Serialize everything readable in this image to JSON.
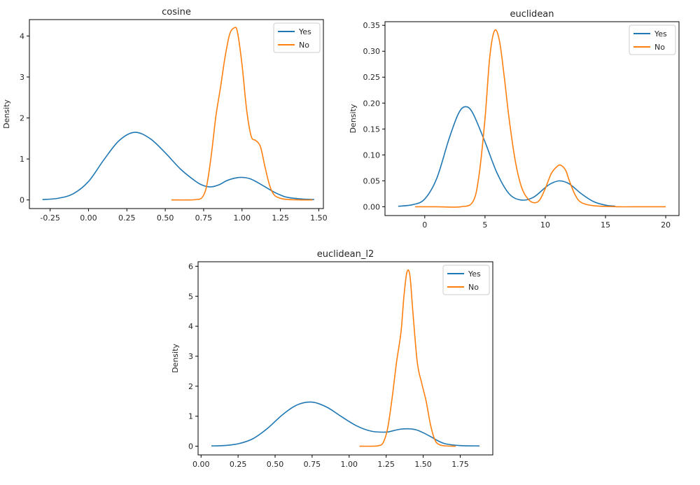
{
  "chart_data": [
    {
      "type": "line",
      "title": "cosine",
      "xlabel": "",
      "ylabel": "Density",
      "xlim": [
        -0.385,
        1.53
      ],
      "ylim": [
        -0.21,
        4.4
      ],
      "xticks": [
        -0.25,
        0.0,
        0.25,
        0.5,
        0.75,
        1.0,
        1.25,
        1.5
      ],
      "xtick_labels": [
        "-0.25",
        "0.00",
        "0.25",
        "0.50",
        "0.75",
        "1.00",
        "1.25",
        "1.50"
      ],
      "yticks": [
        0,
        1,
        2,
        3,
        4
      ],
      "ytick_labels": [
        "0",
        "1",
        "2",
        "3",
        "4"
      ],
      "grid": false,
      "legend_position": "top-right",
      "series": [
        {
          "name": "Yes",
          "color": "#1f77b4",
          "x": [
            -0.3,
            -0.2,
            -0.1,
            0.0,
            0.1,
            0.2,
            0.3,
            0.4,
            0.5,
            0.6,
            0.7,
            0.75,
            0.8,
            0.85,
            0.9,
            0.95,
            1.0,
            1.05,
            1.1,
            1.15,
            1.2,
            1.25,
            1.3,
            1.4,
            1.47
          ],
          "y": [
            0.01,
            0.04,
            0.15,
            0.45,
            0.98,
            1.45,
            1.65,
            1.5,
            1.15,
            0.75,
            0.45,
            0.35,
            0.32,
            0.37,
            0.47,
            0.53,
            0.55,
            0.52,
            0.43,
            0.32,
            0.21,
            0.12,
            0.06,
            0.02,
            0.01
          ]
        },
        {
          "name": "No",
          "color": "#ff7f0e",
          "x": [
            0.54,
            0.65,
            0.7,
            0.74,
            0.77,
            0.8,
            0.83,
            0.86,
            0.89,
            0.92,
            0.95,
            0.97,
            1.0,
            1.03,
            1.06,
            1.09,
            1.12,
            1.15,
            1.18,
            1.21,
            1.25,
            1.3,
            1.4,
            1.46
          ],
          "y": [
            0.0,
            0.0,
            0.01,
            0.06,
            0.35,
            1.1,
            2.05,
            2.75,
            3.5,
            4.05,
            4.2,
            4.1,
            3.3,
            2.2,
            1.55,
            1.45,
            1.3,
            0.8,
            0.35,
            0.12,
            0.04,
            0.01,
            0.0,
            0.0
          ]
        }
      ]
    },
    {
      "type": "line",
      "title": "euclidean",
      "xlabel": "",
      "ylabel": "Density",
      "xlim": [
        -3.3,
        21.1
      ],
      "ylim": [
        -0.017,
        0.357
      ],
      "xticks": [
        0,
        5,
        10,
        15,
        20
      ],
      "xtick_labels": [
        "0",
        "5",
        "10",
        "15",
        "20"
      ],
      "yticks": [
        0.0,
        0.05,
        0.1,
        0.15,
        0.2,
        0.25,
        0.3,
        0.35
      ],
      "ytick_labels": [
        "0.00",
        "0.05",
        "0.10",
        "0.15",
        "0.20",
        "0.25",
        "0.30",
        "0.35"
      ],
      "grid": false,
      "legend_position": "top-right",
      "series": [
        {
          "name": "Yes",
          "color": "#1f77b4",
          "x": [
            -2.2,
            -1.0,
            0.0,
            1.0,
            2.0,
            2.8,
            3.4,
            4.0,
            5.0,
            6.0,
            7.0,
            8.0,
            9.0,
            10.0,
            10.5,
            11.2,
            12.0,
            13.0,
            14.0,
            15.0,
            15.8
          ],
          "y": [
            0.001,
            0.004,
            0.015,
            0.055,
            0.13,
            0.18,
            0.193,
            0.18,
            0.125,
            0.065,
            0.025,
            0.013,
            0.018,
            0.037,
            0.045,
            0.05,
            0.044,
            0.025,
            0.01,
            0.003,
            0.001
          ]
        },
        {
          "name": "No",
          "color": "#ff7f0e",
          "x": [
            -0.8,
            1.0,
            3.0,
            4.0,
            4.5,
            5.0,
            5.4,
            5.8,
            6.2,
            6.6,
            7.0,
            7.5,
            8.0,
            8.5,
            9.0,
            9.5,
            10.0,
            10.5,
            11.0,
            11.3,
            11.7,
            12.0,
            12.5,
            13.0,
            14.0,
            16.0,
            18.0,
            20.0
          ],
          "y": [
            0.0,
            0.0,
            0.0,
            0.01,
            0.06,
            0.17,
            0.29,
            0.34,
            0.32,
            0.25,
            0.17,
            0.09,
            0.04,
            0.017,
            0.008,
            0.012,
            0.035,
            0.064,
            0.078,
            0.08,
            0.07,
            0.05,
            0.022,
            0.008,
            0.002,
            0.0,
            0.0,
            0.0
          ]
        }
      ]
    },
    {
      "type": "line",
      "title": "euclidean_l2",
      "xlabel": "",
      "ylabel": "Density",
      "xlim": [
        -0.02,
        1.97
      ],
      "ylim": [
        -0.29,
        6.15
      ],
      "xticks": [
        0.0,
        0.25,
        0.5,
        0.75,
        1.0,
        1.25,
        1.5,
        1.75
      ],
      "xtick_labels": [
        "0.00",
        "0.25",
        "0.50",
        "0.75",
        "1.00",
        "1.25",
        "1.50",
        "1.75"
      ],
      "yticks": [
        0,
        1,
        2,
        3,
        4,
        5,
        6
      ],
      "ytick_labels": [
        "0",
        "1",
        "2",
        "3",
        "4",
        "5",
        "6"
      ],
      "grid": false,
      "legend_position": "top-right",
      "series": [
        {
          "name": "Yes",
          "color": "#1f77b4",
          "x": [
            0.07,
            0.15,
            0.25,
            0.35,
            0.45,
            0.55,
            0.65,
            0.75,
            0.85,
            0.95,
            1.05,
            1.15,
            1.25,
            1.3,
            1.35,
            1.4,
            1.45,
            1.5,
            1.55,
            1.6,
            1.65,
            1.75,
            1.88
          ],
          "y": [
            0.01,
            0.02,
            0.08,
            0.25,
            0.6,
            1.05,
            1.38,
            1.47,
            1.3,
            0.98,
            0.68,
            0.5,
            0.47,
            0.52,
            0.57,
            0.58,
            0.55,
            0.45,
            0.32,
            0.18,
            0.08,
            0.02,
            0.01
          ]
        },
        {
          "name": "No",
          "color": "#ff7f0e",
          "x": [
            1.07,
            1.15,
            1.2,
            1.23,
            1.26,
            1.29,
            1.32,
            1.35,
            1.37,
            1.39,
            1.41,
            1.43,
            1.46,
            1.49,
            1.52,
            1.55,
            1.58,
            1.61,
            1.65,
            1.72
          ],
          "y": [
            0.0,
            0.0,
            0.02,
            0.12,
            0.6,
            1.6,
            2.8,
            3.8,
            5.0,
            5.8,
            5.7,
            4.5,
            2.8,
            2.1,
            1.5,
            0.7,
            0.2,
            0.05,
            0.01,
            0.0
          ]
        }
      ]
    }
  ]
}
